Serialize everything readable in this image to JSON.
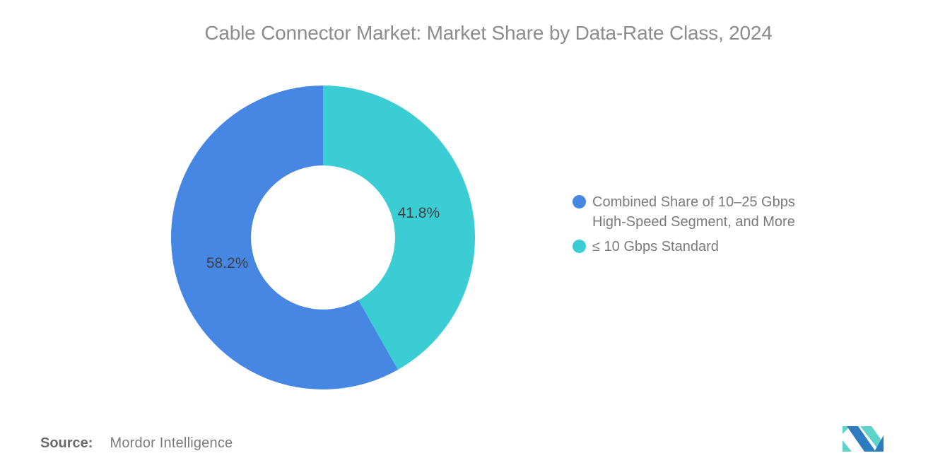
{
  "chart_data": {
    "type": "pie",
    "subtype": "donut",
    "title": "Cable Connector Market: Market Share by Data-Rate Class, 2024",
    "start_angle_deg": 0,
    "direction": "clockwise",
    "inner_radius_ratio": 0.474,
    "label_radius": 140,
    "label_color": "#3F4045",
    "slices": [
      {
        "key": "standard",
        "label": "≤ 10 Gbps Standard",
        "value": 41.8,
        "display": "41.8%",
        "color": "#3BCDD4"
      },
      {
        "key": "high-speed",
        "label": "Combined Share of 10–25 Gbps High-Speed Segment, and More",
        "value": 58.2,
        "display": "58.2%",
        "color": "#4587E2"
      }
    ],
    "legend": {
      "position": "right",
      "items": [
        {
          "key": "high-speed",
          "line1": "Combined Share of 10–25 Gbps",
          "line2": "High-Speed Segment, and More",
          "color": "#4587E2"
        },
        {
          "key": "standard",
          "line1": "≤ 10 Gbps Standard",
          "line2": "",
          "color": "#3BCDD4"
        }
      ]
    }
  },
  "footer": {
    "source_label": "Source:",
    "source_value": "Mordor Intelligence"
  },
  "branding": {
    "logo_name": "mordor-intelligence-logo",
    "logo_blue": "#2B7CC0",
    "logo_teal": "#5ED3CC"
  }
}
